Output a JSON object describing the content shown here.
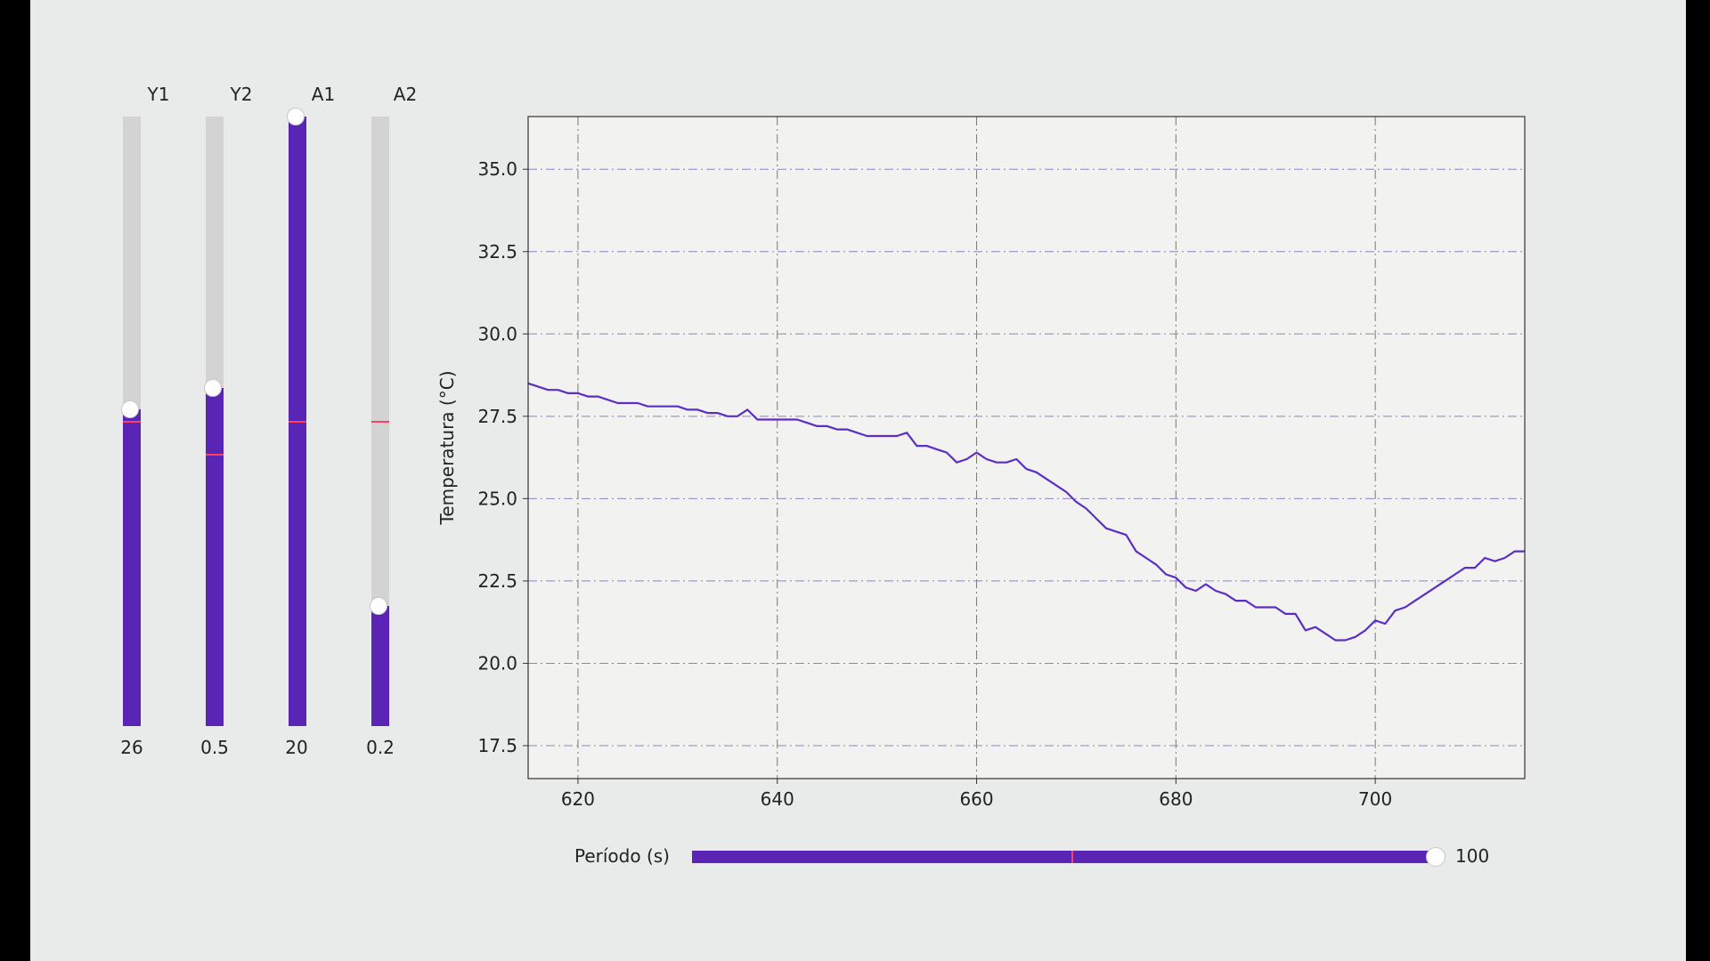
{
  "sliders": [
    {
      "label": "Y1",
      "value_text": "26",
      "fraction": 0.52,
      "init_fraction": 0.5
    },
    {
      "label": "Y2",
      "value_text": "0.5",
      "fraction": 0.555,
      "init_fraction": 0.445
    },
    {
      "label": "A1",
      "value_text": "20",
      "fraction": 1.0,
      "init_fraction": 0.5
    },
    {
      "label": "A2",
      "value_text": "0.2",
      "fraction": 0.197,
      "init_fraction": 0.5
    }
  ],
  "period_slider": {
    "label": "Período (s)",
    "value_text": "100",
    "fraction": 1.0,
    "init_fraction": 0.51
  },
  "colors": {
    "accent": "#5a24b4",
    "line": "#5b2fc4",
    "valinit": "#ff4060",
    "track": "#d3d3d3"
  },
  "chart_data": {
    "type": "line",
    "title": "",
    "xlabel": "",
    "ylabel": "Temperatura (°C)",
    "xlim": [
      615,
      715
    ],
    "ylim": [
      16.5,
      36.6
    ],
    "xticks": [
      620,
      640,
      660,
      680,
      700
    ],
    "xtick_labels": [
      "620",
      "640",
      "660",
      "680",
      "700"
    ],
    "yticks": [
      17.5,
      20.0,
      22.5,
      25.0,
      27.5,
      30.0,
      32.5,
      35.0
    ],
    "ytick_labels": [
      "17.5",
      "20.0",
      "22.5",
      "25.0",
      "27.5",
      "30.0",
      "32.5",
      "35.0"
    ],
    "grid": true,
    "series": [
      {
        "name": "Temperatura",
        "x": [
          615,
          617,
          618,
          619,
          620,
          621,
          622,
          623,
          624,
          625,
          626,
          627,
          628,
          629,
          630,
          631,
          632,
          633,
          634,
          635,
          636,
          637,
          638,
          639,
          640,
          641,
          642,
          643,
          644,
          645,
          646,
          647,
          648,
          649,
          650,
          651,
          652,
          653,
          654,
          655,
          656,
          657,
          658,
          659,
          660,
          661,
          662,
          663,
          664,
          665,
          666,
          667,
          668,
          669,
          670,
          671,
          672,
          673,
          674,
          675,
          676,
          677,
          678,
          679,
          680,
          681,
          682,
          683,
          684,
          685,
          686,
          687,
          688,
          689,
          690,
          691,
          692,
          693,
          694,
          695,
          696,
          697,
          698,
          699,
          700,
          701,
          702,
          703,
          704,
          705,
          706,
          707,
          708,
          709,
          710,
          711,
          712,
          713,
          714,
          715
        ],
        "values": [
          28.5,
          28.3,
          28.3,
          28.2,
          28.2,
          28.1,
          28.1,
          28.0,
          27.9,
          27.9,
          27.9,
          27.8,
          27.8,
          27.8,
          27.8,
          27.7,
          27.7,
          27.6,
          27.6,
          27.5,
          27.5,
          27.7,
          27.4,
          27.4,
          27.4,
          27.4,
          27.4,
          27.3,
          27.2,
          27.2,
          27.1,
          27.1,
          27.0,
          26.9,
          26.9,
          26.9,
          26.9,
          27.0,
          26.6,
          26.6,
          26.5,
          26.4,
          26.1,
          26.2,
          26.4,
          26.2,
          26.1,
          26.1,
          26.2,
          25.9,
          25.8,
          25.6,
          25.4,
          25.2,
          24.9,
          24.7,
          24.4,
          24.1,
          24.0,
          23.9,
          23.4,
          23.2,
          23.0,
          22.7,
          22.6,
          22.3,
          22.2,
          22.4,
          22.2,
          22.1,
          21.9,
          21.9,
          21.7,
          21.7,
          21.7,
          21.5,
          21.5,
          21.0,
          21.1,
          20.9,
          20.7,
          20.7,
          20.8,
          21.0,
          21.3,
          21.2,
          21.6,
          21.7,
          21.9,
          22.1,
          22.3,
          22.5,
          22.7,
          22.9,
          22.9,
          23.2,
          23.1,
          23.2,
          23.4,
          23.4
        ]
      }
    ]
  }
}
